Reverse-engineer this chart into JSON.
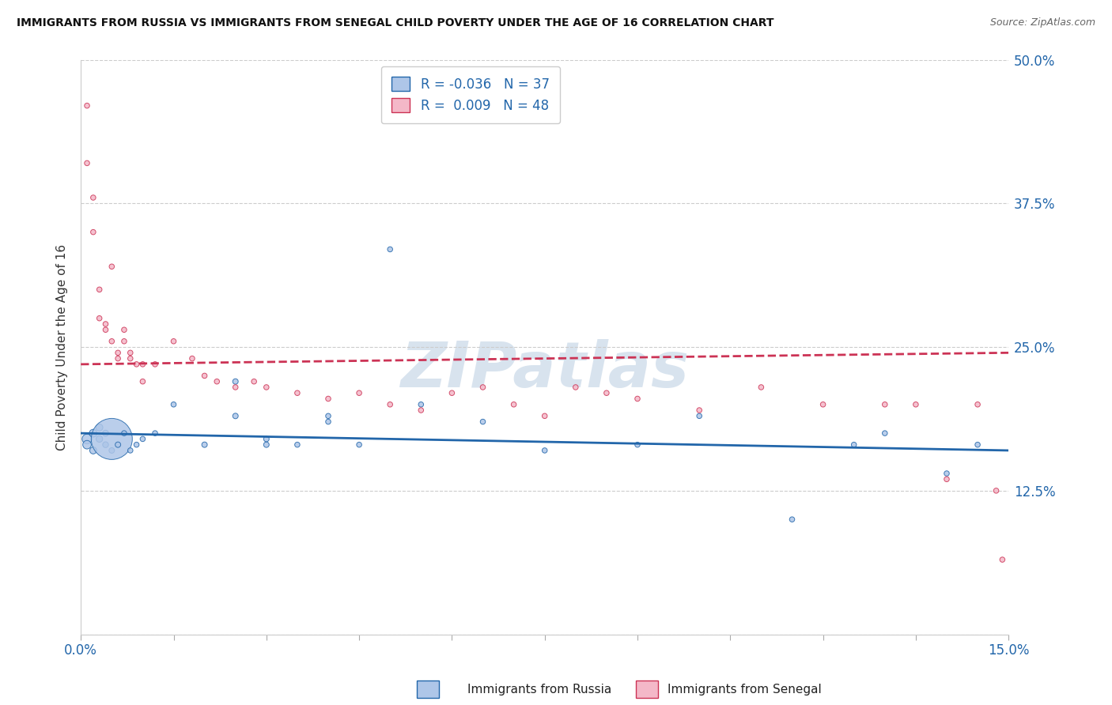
{
  "title": "IMMIGRANTS FROM RUSSIA VS IMMIGRANTS FROM SENEGAL CHILD POVERTY UNDER THE AGE OF 16 CORRELATION CHART",
  "source": "Source: ZipAtlas.com",
  "ylabel": "Child Poverty Under the Age of 16",
  "xlabel_russia": "Immigrants from Russia",
  "xlabel_senegal": "Immigrants from Senegal",
  "xlim": [
    0.0,
    0.15
  ],
  "ylim": [
    0.0,
    0.5
  ],
  "yticks": [
    0.0,
    0.125,
    0.25,
    0.375,
    0.5
  ],
  "ytick_labels": [
    "",
    "12.5%",
    "25.0%",
    "37.5%",
    "50.0%"
  ],
  "russia_R": -0.036,
  "russia_N": 37,
  "senegal_R": 0.009,
  "senegal_N": 48,
  "russia_color": "#aec6e8",
  "senegal_color": "#f4b8c8",
  "russia_line_color": "#2266aa",
  "senegal_line_color": "#cc3355",
  "russia_x": [
    0.001,
    0.001,
    0.002,
    0.002,
    0.003,
    0.003,
    0.004,
    0.004,
    0.005,
    0.005,
    0.006,
    0.007,
    0.008,
    0.009,
    0.01,
    0.012,
    0.015,
    0.02,
    0.025,
    0.025,
    0.03,
    0.03,
    0.035,
    0.04,
    0.04,
    0.045,
    0.05,
    0.055,
    0.065,
    0.075,
    0.09,
    0.1,
    0.115,
    0.125,
    0.13,
    0.14,
    0.145
  ],
  "russia_y": [
    0.17,
    0.165,
    0.175,
    0.16,
    0.18,
    0.17,
    0.175,
    0.165,
    0.16,
    0.17,
    0.165,
    0.175,
    0.16,
    0.165,
    0.17,
    0.175,
    0.2,
    0.165,
    0.19,
    0.22,
    0.165,
    0.17,
    0.165,
    0.185,
    0.19,
    0.165,
    0.335,
    0.2,
    0.185,
    0.16,
    0.165,
    0.19,
    0.1,
    0.165,
    0.175,
    0.14,
    0.165
  ],
  "russia_size": [
    80,
    60,
    50,
    40,
    40,
    35,
    30,
    28,
    25,
    1400,
    25,
    22,
    22,
    22,
    22,
    22,
    22,
    25,
    25,
    25,
    25,
    25,
    22,
    22,
    22,
    22,
    22,
    22,
    22,
    22,
    22,
    22,
    22,
    22,
    22,
    22,
    22
  ],
  "senegal_x": [
    0.001,
    0.001,
    0.002,
    0.002,
    0.003,
    0.003,
    0.004,
    0.004,
    0.005,
    0.005,
    0.006,
    0.006,
    0.007,
    0.007,
    0.008,
    0.008,
    0.009,
    0.01,
    0.01,
    0.012,
    0.015,
    0.018,
    0.02,
    0.022,
    0.025,
    0.028,
    0.03,
    0.035,
    0.04,
    0.045,
    0.05,
    0.055,
    0.06,
    0.065,
    0.07,
    0.075,
    0.08,
    0.085,
    0.09,
    0.1,
    0.11,
    0.12,
    0.13,
    0.135,
    0.14,
    0.145,
    0.148,
    0.149
  ],
  "senegal_y": [
    0.46,
    0.41,
    0.38,
    0.35,
    0.3,
    0.275,
    0.27,
    0.265,
    0.32,
    0.255,
    0.245,
    0.24,
    0.265,
    0.255,
    0.245,
    0.24,
    0.235,
    0.235,
    0.22,
    0.235,
    0.255,
    0.24,
    0.225,
    0.22,
    0.215,
    0.22,
    0.215,
    0.21,
    0.205,
    0.21,
    0.2,
    0.195,
    0.21,
    0.215,
    0.2,
    0.19,
    0.215,
    0.21,
    0.205,
    0.195,
    0.215,
    0.2,
    0.2,
    0.2,
    0.135,
    0.2,
    0.125,
    0.065
  ],
  "senegal_size": [
    22,
    22,
    22,
    22,
    22,
    22,
    22,
    22,
    22,
    22,
    22,
    22,
    22,
    22,
    22,
    22,
    22,
    22,
    22,
    22,
    22,
    22,
    22,
    22,
    22,
    22,
    22,
    22,
    22,
    22,
    22,
    22,
    22,
    22,
    22,
    22,
    22,
    22,
    22,
    22,
    22,
    22,
    22,
    22,
    22,
    22,
    22,
    22
  ],
  "russia_trend_x": [
    0.0,
    0.15
  ],
  "russia_trend_y": [
    0.175,
    0.16
  ],
  "senegal_trend_x": [
    0.0,
    0.15
  ],
  "senegal_trend_y": [
    0.235,
    0.245
  ],
  "watermark_text": "ZIPatlas",
  "watermark_color": "#c8d8e8",
  "background_color": "#ffffff",
  "grid_color": "#cccccc",
  "title_color": "#111111",
  "source_color": "#666666",
  "tick_label_color": "#2266aa"
}
